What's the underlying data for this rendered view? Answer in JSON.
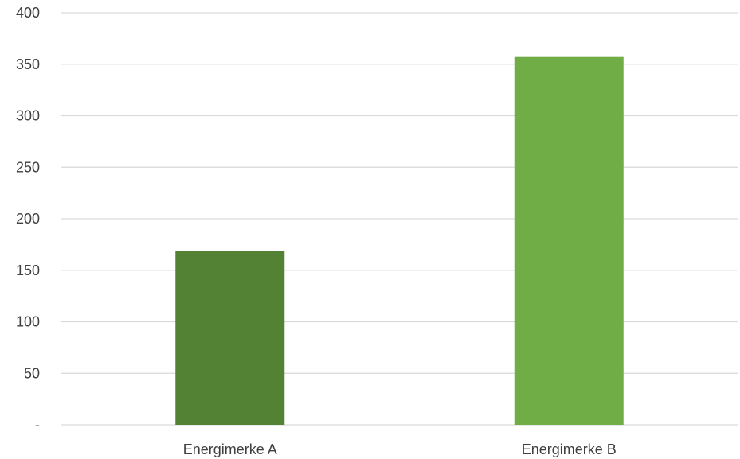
{
  "chart_data": {
    "type": "bar",
    "categories": [
      "Energimerke A",
      "Energimerke B"
    ],
    "values": [
      169,
      357
    ],
    "ylim": [
      0,
      400
    ],
    "yticks": [
      0,
      50,
      100,
      150,
      200,
      250,
      300,
      350,
      400
    ],
    "ytick_labels": [
      "-",
      "50",
      "100",
      "150",
      "200",
      "250",
      "300",
      "350",
      "400"
    ],
    "bar_colors": [
      "#548235",
      "#70ad47"
    ],
    "grid": true,
    "legend": "none",
    "title": "",
    "xlabel": "",
    "ylabel": ""
  }
}
